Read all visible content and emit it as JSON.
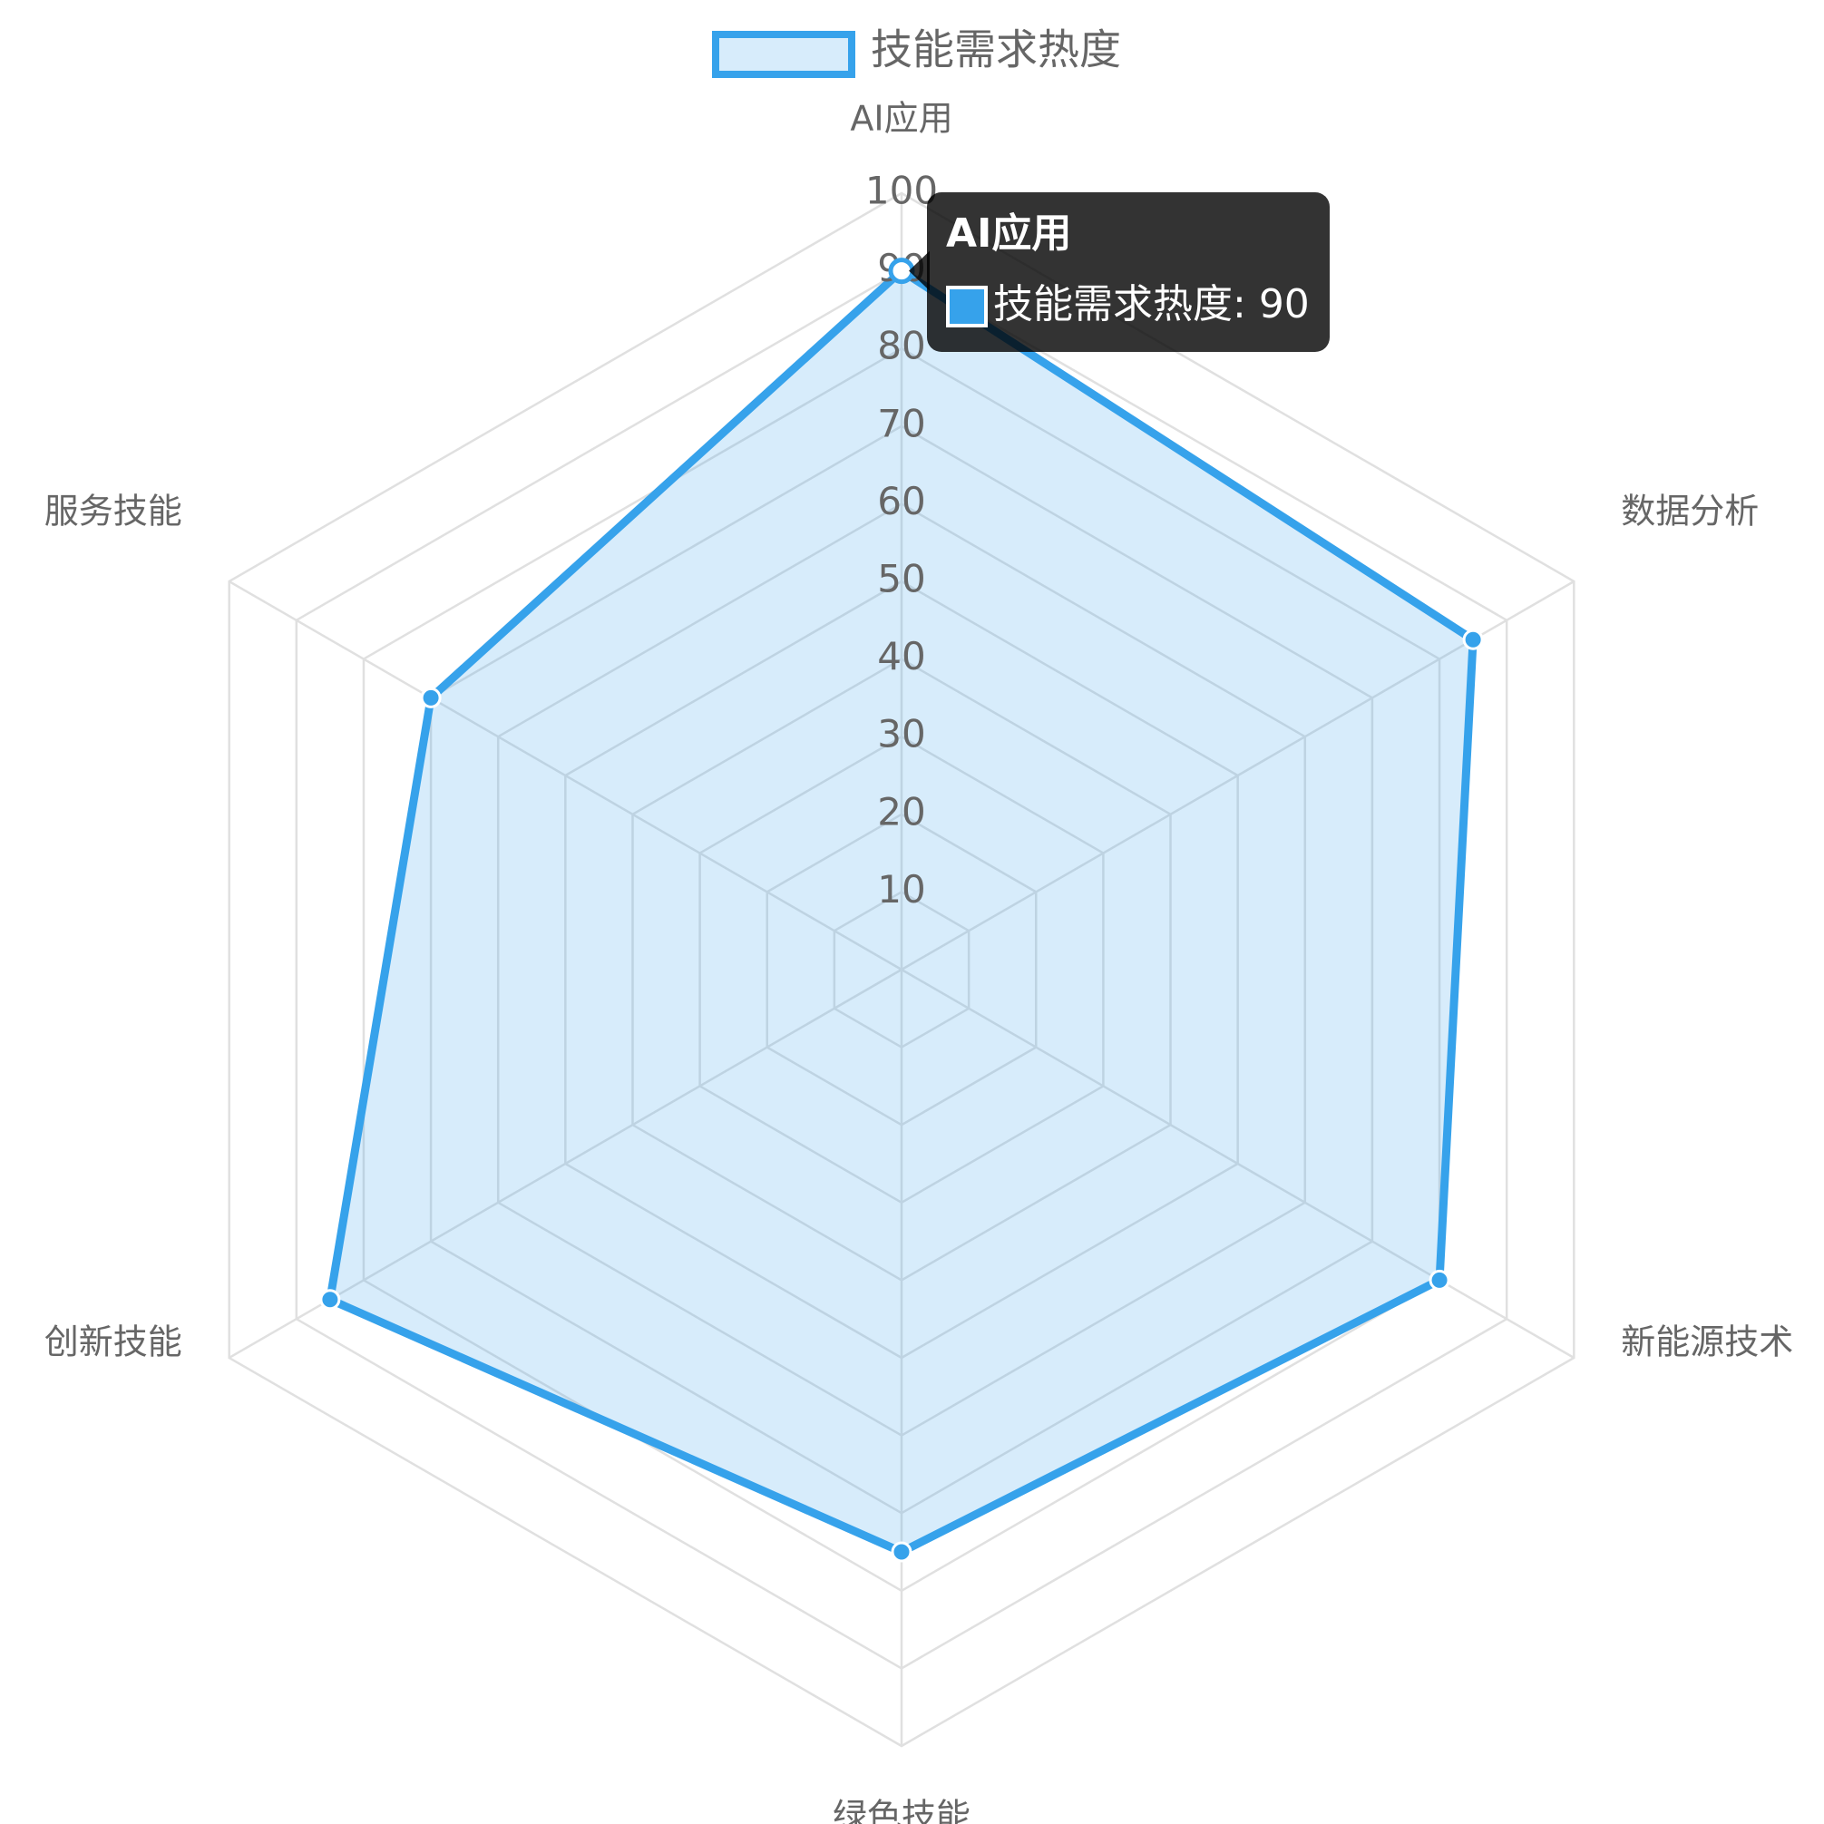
{
  "chart_data": {
    "type": "radar",
    "categories": [
      "AI应用",
      "数据分析",
      "新能源技术",
      "绿色技能",
      "创新技能",
      "服务技能"
    ],
    "series": [
      {
        "name": "技能需求热度",
        "color": "#36a2eb",
        "values": [
          90,
          85,
          80,
          75,
          85,
          70
        ]
      }
    ],
    "rlim": [
      0,
      100
    ],
    "rticks": [
      10,
      20,
      30,
      40,
      50,
      60,
      70,
      80,
      90,
      100
    ],
    "grid": true
  }
}
